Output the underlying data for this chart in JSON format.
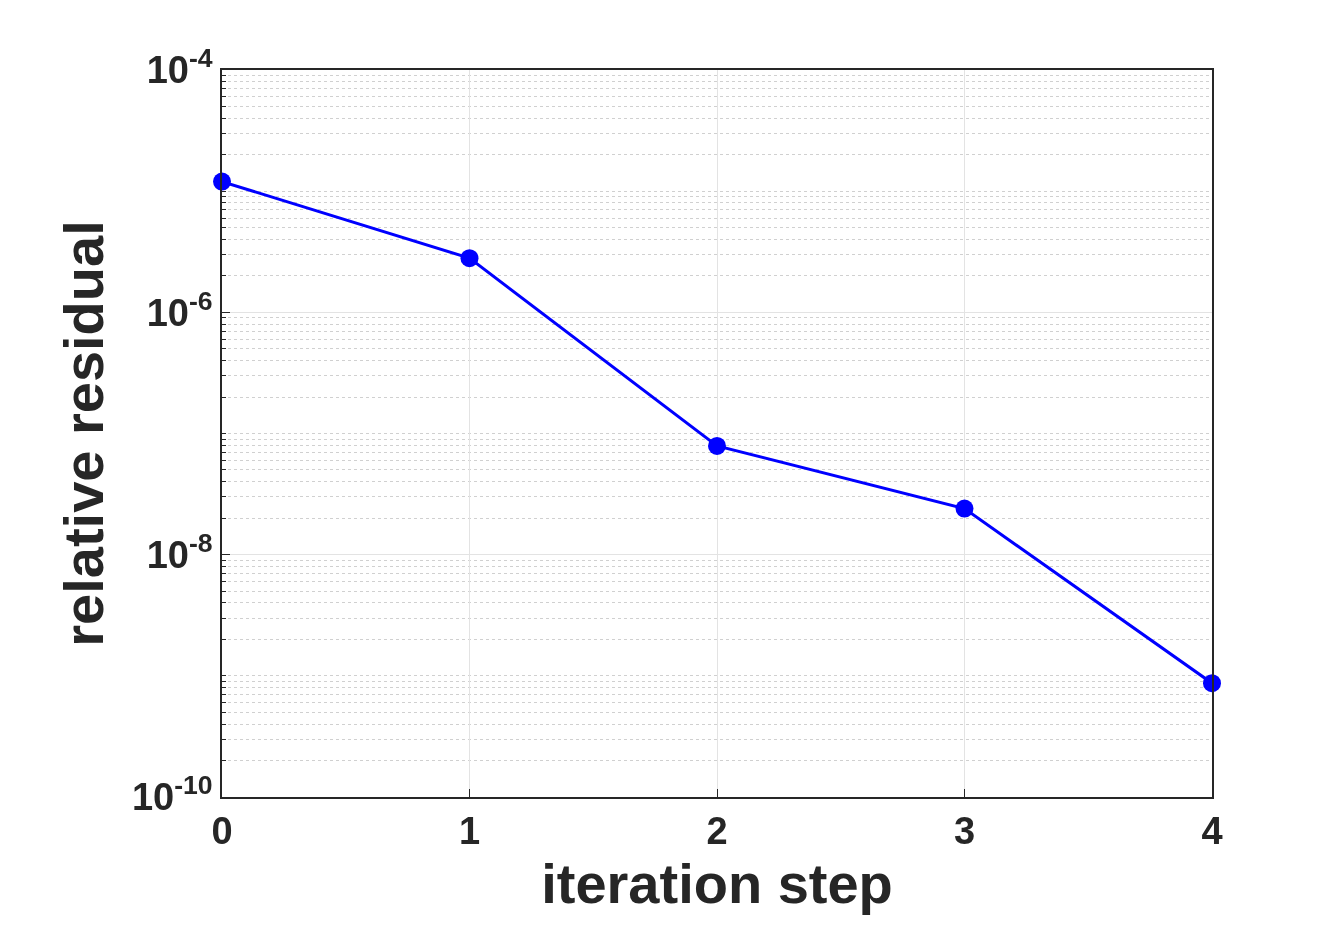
{
  "chart_data": {
    "type": "line",
    "xlabel": "iteration step",
    "ylabel": "relative residual",
    "x": [
      0,
      1,
      2,
      3,
      4
    ],
    "series": [
      {
        "color": "#0000ff",
        "values": [
          1.2e-05,
          2.8e-06,
          7.9e-08,
          2.4e-08,
          8.7e-10
        ]
      }
    ],
    "log": "y",
    "xlim": [
      0,
      4
    ],
    "xticks": [
      0,
      1,
      2,
      3,
      4
    ],
    "ylim": [
      1e-10,
      0.0001
    ],
    "yticks": [
      {
        "value": 1e-10,
        "label": "10$^{-10}$"
      },
      {
        "value": 1e-08,
        "label": "10$^{-8}$"
      },
      {
        "value": 1e-06,
        "label": "10$^{-6}$"
      },
      {
        "value": 0.0001,
        "label": "10$^{-4}$"
      }
    ],
    "grid": true,
    "marker": "circle",
    "line_style": "solid"
  }
}
